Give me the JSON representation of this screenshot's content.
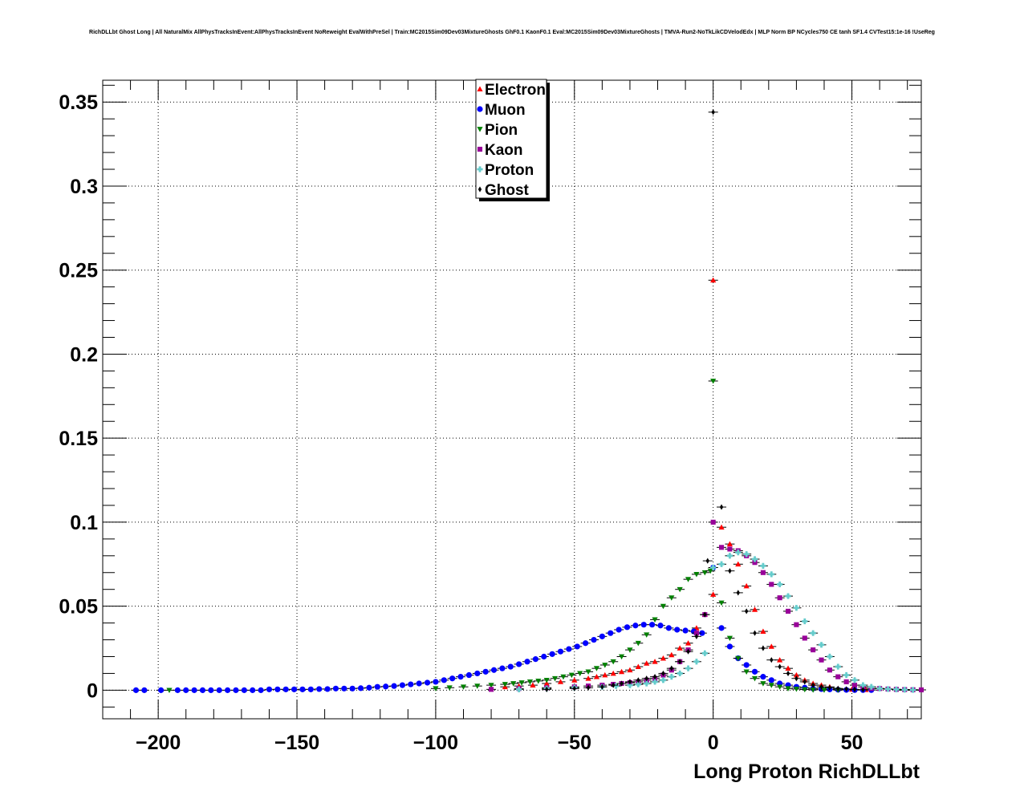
{
  "chart_data": {
    "type": "scatter",
    "title": "RichDLLbt Ghost Long | All NaturalMix AllPhysTracksInEvent:AllPhysTracksInEvent NoReweight EvalWithPreSel | Train:MC2015Sim09Dev03MixtureGhosts GhF0.1 KaonF0.1 Eval:MC2015Sim09Dev03MixtureGhosts | TMVA-Run2-NoTkLikCDVelodEdx | MLP Norm BP NCycles750 CE tanh SF1.4 CVTest15:1e-16 !UseReg",
    "xlabel": "Long Proton RichDLLbt",
    "ylabel": "",
    "xlim": [
      -220,
      75
    ],
    "ylim": [
      -0.017,
      0.363
    ],
    "x_ticks": [
      -200,
      -150,
      -100,
      -50,
      0,
      50
    ],
    "x_tick_labels": [
      "−200",
      "−150",
      "−100",
      "−50",
      "0",
      "50"
    ],
    "y_ticks": [
      0,
      0.05,
      0.1,
      0.15,
      0.2,
      0.25,
      0.3,
      0.35
    ],
    "y_tick_labels": [
      "0",
      "0.05",
      "0.1",
      "0.15",
      "0.2",
      "0.25",
      "0.3",
      "0.35"
    ],
    "grid": true,
    "legend_position": "top-center",
    "series": [
      {
        "name": "Electron",
        "color": "#ff0000",
        "marker": "triangle-up",
        "points": [
          [
            -75,
            0.002
          ],
          [
            -70,
            0.0025
          ],
          [
            -65,
            0.003
          ],
          [
            -60,
            0.004
          ],
          [
            -55,
            0.005
          ],
          [
            -50,
            0.006
          ],
          [
            -45,
            0.007
          ],
          [
            -42,
            0.008
          ],
          [
            -39,
            0.009
          ],
          [
            -36,
            0.01
          ],
          [
            -33,
            0.011
          ],
          [
            -30,
            0.012
          ],
          [
            -27,
            0.014
          ],
          [
            -24,
            0.016
          ],
          [
            -21,
            0.017
          ],
          [
            -18,
            0.019
          ],
          [
            -15,
            0.021
          ],
          [
            -12,
            0.025
          ],
          [
            -9,
            0.028
          ],
          [
            -6,
            0.037
          ],
          [
            -3,
            0.045
          ],
          [
            0,
            0.057
          ],
          [
            0,
            0.244
          ],
          [
            3,
            0.097
          ],
          [
            6,
            0.087
          ],
          [
            9,
            0.075
          ],
          [
            12,
            0.062
          ],
          [
            15,
            0.048
          ],
          [
            18,
            0.035
          ],
          [
            21,
            0.026
          ],
          [
            24,
            0.018
          ],
          [
            27,
            0.013
          ],
          [
            30,
            0.009
          ],
          [
            33,
            0.006
          ],
          [
            36,
            0.004
          ],
          [
            39,
            0.003
          ],
          [
            42,
            0.002
          ],
          [
            45,
            0.001
          ],
          [
            50,
            0.0005
          ],
          [
            55,
            0.0003
          ]
        ]
      },
      {
        "name": "Muon",
        "color": "#0000ff",
        "marker": "circle",
        "points": [
          [
            -208,
            0.0
          ],
          [
            -205,
            0.0
          ],
          [
            -199,
            0.0
          ],
          [
            -193,
            0.0
          ],
          [
            -190,
            0.0
          ],
          [
            -187,
            0.0
          ],
          [
            -184,
            0.0
          ],
          [
            -181,
            0.0
          ],
          [
            -178,
            0.0
          ],
          [
            -175,
            0.0
          ],
          [
            -172,
            0.0
          ],
          [
            -169,
            0.0
          ],
          [
            -166,
            0.0
          ],
          [
            -163,
            0.0
          ],
          [
            -160,
            0.0005
          ],
          [
            -157,
            0.0005
          ],
          [
            -154,
            0.0005
          ],
          [
            -151,
            0.0005
          ],
          [
            -148,
            0.0005
          ],
          [
            -145,
            0.0005
          ],
          [
            -142,
            0.0007
          ],
          [
            -139,
            0.0007
          ],
          [
            -136,
            0.001
          ],
          [
            -133,
            0.001
          ],
          [
            -130,
            0.001
          ],
          [
            -127,
            0.0012
          ],
          [
            -124,
            0.0015
          ],
          [
            -121,
            0.002
          ],
          [
            -118,
            0.0022
          ],
          [
            -115,
            0.0025
          ],
          [
            -112,
            0.003
          ],
          [
            -109,
            0.0035
          ],
          [
            -106,
            0.004
          ],
          [
            -103,
            0.0045
          ],
          [
            -100,
            0.005
          ],
          [
            -97,
            0.006
          ],
          [
            -94,
            0.007
          ],
          [
            -91,
            0.008
          ],
          [
            -88,
            0.009
          ],
          [
            -85,
            0.01
          ],
          [
            -82,
            0.011
          ],
          [
            -79,
            0.012
          ],
          [
            -76,
            0.013
          ],
          [
            -73,
            0.014
          ],
          [
            -70,
            0.0155
          ],
          [
            -67,
            0.017
          ],
          [
            -64,
            0.0185
          ],
          [
            -61,
            0.02
          ],
          [
            -58,
            0.0215
          ],
          [
            -55,
            0.023
          ],
          [
            -52,
            0.0245
          ],
          [
            -49,
            0.026
          ],
          [
            -46,
            0.028
          ],
          [
            -43,
            0.03
          ],
          [
            -40,
            0.032
          ],
          [
            -37,
            0.034
          ],
          [
            -34,
            0.036
          ],
          [
            -31,
            0.0375
          ],
          [
            -28,
            0.0385
          ],
          [
            -25,
            0.039
          ],
          [
            -22,
            0.039
          ],
          [
            -19,
            0.0385
          ],
          [
            -16,
            0.037
          ],
          [
            -13,
            0.036
          ],
          [
            -10,
            0.0355
          ],
          [
            -7,
            0.035
          ],
          [
            -4,
            0.034
          ],
          [
            0,
            0.073
          ],
          [
            3,
            0.037
          ],
          [
            6,
            0.026
          ],
          [
            9,
            0.019
          ],
          [
            12,
            0.015
          ],
          [
            15,
            0.011
          ],
          [
            18,
            0.008
          ],
          [
            21,
            0.006
          ],
          [
            24,
            0.004
          ],
          [
            27,
            0.003
          ],
          [
            30,
            0.002
          ],
          [
            33,
            0.0015
          ],
          [
            36,
            0.001
          ],
          [
            39,
            0.0007
          ],
          [
            42,
            0.0005
          ],
          [
            45,
            0.0003
          ],
          [
            48,
            0.0002
          ],
          [
            51,
            0.0001
          ],
          [
            54,
            0.0001
          ],
          [
            57,
            0.0001
          ]
        ]
      },
      {
        "name": "Pion",
        "color": "#008000",
        "marker": "triangle-down",
        "points": [
          [
            -196,
            0.0
          ],
          [
            -100,
            0.001
          ],
          [
            -95,
            0.0015
          ],
          [
            -90,
            0.002
          ],
          [
            -85,
            0.0025
          ],
          [
            -80,
            0.003
          ],
          [
            -75,
            0.0035
          ],
          [
            -72,
            0.004
          ],
          [
            -69,
            0.0045
          ],
          [
            -66,
            0.005
          ],
          [
            -63,
            0.0055
          ],
          [
            -60,
            0.006
          ],
          [
            -57,
            0.007
          ],
          [
            -54,
            0.008
          ],
          [
            -51,
            0.009
          ],
          [
            -48,
            0.01
          ],
          [
            -45,
            0.011
          ],
          [
            -42,
            0.013
          ],
          [
            -39,
            0.015
          ],
          [
            -36,
            0.017
          ],
          [
            -33,
            0.02
          ],
          [
            -30,
            0.024
          ],
          [
            -27,
            0.028
          ],
          [
            -24,
            0.033
          ],
          [
            -21,
            0.042
          ],
          [
            -18,
            0.05
          ],
          [
            -15,
            0.055
          ],
          [
            -12,
            0.06
          ],
          [
            -9,
            0.066
          ],
          [
            -6,
            0.069
          ],
          [
            -3,
            0.07
          ],
          [
            -1,
            0.071
          ],
          [
            0,
            0.184
          ],
          [
            3,
            0.052
          ],
          [
            6,
            0.031
          ],
          [
            9,
            0.019
          ],
          [
            12,
            0.011
          ],
          [
            15,
            0.007
          ],
          [
            18,
            0.004
          ],
          [
            21,
            0.003
          ],
          [
            24,
            0.002
          ],
          [
            27,
            0.001
          ],
          [
            30,
            0.0007
          ],
          [
            33,
            0.0004
          ],
          [
            36,
            0.0002
          ],
          [
            40,
            0.0001
          ],
          [
            45,
            0.0001
          ]
        ]
      },
      {
        "name": "Kaon",
        "color": "#990099",
        "marker": "square",
        "points": [
          [
            -80,
            0.0005
          ],
          [
            -70,
            0.001
          ],
          [
            -60,
            0.0015
          ],
          [
            -50,
            0.002
          ],
          [
            -45,
            0.0025
          ],
          [
            -40,
            0.003
          ],
          [
            -36,
            0.0035
          ],
          [
            -33,
            0.004
          ],
          [
            -30,
            0.0045
          ],
          [
            -27,
            0.005
          ],
          [
            -24,
            0.006
          ],
          [
            -21,
            0.007
          ],
          [
            -18,
            0.009
          ],
          [
            -15,
            0.012
          ],
          [
            -12,
            0.017
          ],
          [
            -9,
            0.024
          ],
          [
            -6,
            0.034
          ],
          [
            -3,
            0.045
          ],
          [
            0,
            0.1
          ],
          [
            3,
            0.085
          ],
          [
            6,
            0.084
          ],
          [
            9,
            0.083
          ],
          [
            12,
            0.08
          ],
          [
            15,
            0.076
          ],
          [
            18,
            0.07
          ],
          [
            21,
            0.063
          ],
          [
            24,
            0.055
          ],
          [
            27,
            0.047
          ],
          [
            30,
            0.039
          ],
          [
            33,
            0.031
          ],
          [
            36,
            0.024
          ],
          [
            39,
            0.018
          ],
          [
            42,
            0.012
          ],
          [
            45,
            0.008
          ],
          [
            48,
            0.005
          ],
          [
            51,
            0.003
          ],
          [
            54,
            0.002
          ],
          [
            57,
            0.001
          ],
          [
            60,
            0.001
          ],
          [
            63,
            0.0007
          ],
          [
            66,
            0.0005
          ],
          [
            69,
            0.0004
          ],
          [
            72,
            0.0003
          ],
          [
            75,
            0.0002
          ]
        ]
      },
      {
        "name": "Proton",
        "color": "#66cccc",
        "marker": "cross",
        "points": [
          [
            -70,
            0.0005
          ],
          [
            -60,
            0.001
          ],
          [
            -50,
            0.0015
          ],
          [
            -40,
            0.002
          ],
          [
            -35,
            0.0025
          ],
          [
            -30,
            0.003
          ],
          [
            -27,
            0.0035
          ],
          [
            -24,
            0.004
          ],
          [
            -21,
            0.005
          ],
          [
            -18,
            0.006
          ],
          [
            -15,
            0.008
          ],
          [
            -12,
            0.01
          ],
          [
            -9,
            0.013
          ],
          [
            -6,
            0.017
          ],
          [
            -3,
            0.022
          ],
          [
            0,
            0.073
          ],
          [
            3,
            0.075
          ],
          [
            6,
            0.08
          ],
          [
            9,
            0.082
          ],
          [
            12,
            0.081
          ],
          [
            15,
            0.078
          ],
          [
            18,
            0.074
          ],
          [
            21,
            0.069
          ],
          [
            24,
            0.063
          ],
          [
            27,
            0.056
          ],
          [
            30,
            0.049
          ],
          [
            33,
            0.041
          ],
          [
            36,
            0.034
          ],
          [
            39,
            0.027
          ],
          [
            42,
            0.02
          ],
          [
            45,
            0.014
          ],
          [
            48,
            0.009
          ],
          [
            51,
            0.006
          ],
          [
            54,
            0.003
          ],
          [
            57,
            0.002
          ],
          [
            60,
            0.001
          ],
          [
            63,
            0.0007
          ],
          [
            66,
            0.0005
          ],
          [
            69,
            0.0003
          ],
          [
            72,
            0.0002
          ]
        ]
      },
      {
        "name": "Ghost",
        "color": "#000000",
        "marker": "diamond",
        "points": [
          [
            -60,
            0.0005
          ],
          [
            -50,
            0.001
          ],
          [
            -45,
            0.0015
          ],
          [
            -40,
            0.002
          ],
          [
            -36,
            0.003
          ],
          [
            -33,
            0.004
          ],
          [
            -30,
            0.005
          ],
          [
            -27,
            0.006
          ],
          [
            -24,
            0.007
          ],
          [
            -21,
            0.008
          ],
          [
            -18,
            0.01
          ],
          [
            -15,
            0.013
          ],
          [
            -12,
            0.017
          ],
          [
            -9,
            0.023
          ],
          [
            -6,
            0.032
          ],
          [
            -3,
            0.045
          ],
          [
            -2,
            0.077
          ],
          [
            0,
            0.344
          ],
          [
            3,
            0.109
          ],
          [
            6,
            0.071
          ],
          [
            9,
            0.058
          ],
          [
            12,
            0.047
          ],
          [
            15,
            0.034
          ],
          [
            18,
            0.025
          ],
          [
            21,
            0.018
          ],
          [
            24,
            0.014
          ],
          [
            27,
            0.01
          ],
          [
            30,
            0.007
          ],
          [
            33,
            0.005
          ],
          [
            36,
            0.003
          ],
          [
            39,
            0.002
          ],
          [
            42,
            0.0015
          ],
          [
            45,
            0.001
          ],
          [
            48,
            0.0007
          ],
          [
            51,
            0.0005
          ],
          [
            54,
            0.0003
          ]
        ]
      }
    ]
  }
}
